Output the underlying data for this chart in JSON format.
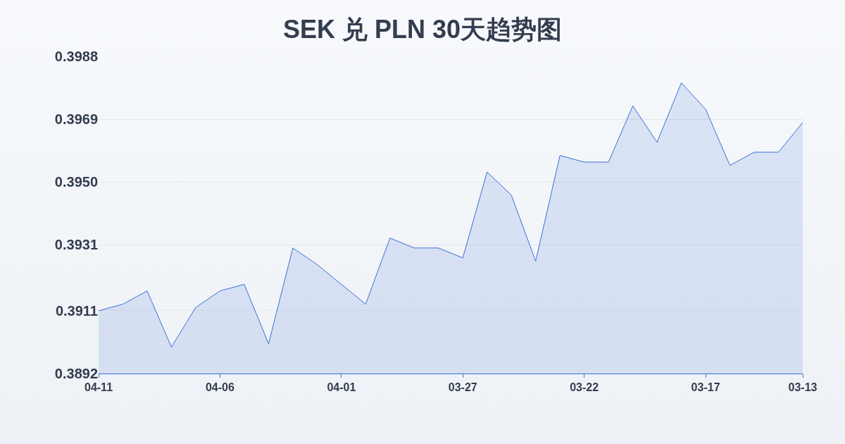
{
  "chart_data": {
    "type": "area",
    "title": "SEK 兑 PLN 30天趋势图",
    "categories": [
      "04-11",
      null,
      null,
      null,
      null,
      "04-06",
      null,
      null,
      null,
      null,
      "04-01",
      null,
      null,
      null,
      null,
      "03-27",
      null,
      null,
      null,
      null,
      "03-22",
      null,
      null,
      null,
      null,
      "03-17",
      null,
      null,
      null,
      "03-13"
    ],
    "series": [
      {
        "color": "#3a6fd8",
        "values": [
          0.3911,
          0.3913,
          0.3917,
          0.39,
          0.3912,
          0.3917,
          0.3919,
          0.3901,
          0.393,
          0.3925,
          0.3919,
          0.3913,
          0.3933,
          0.393,
          0.393,
          0.3927,
          0.3953,
          0.3946,
          0.3926,
          0.3958,
          0.3956,
          0.3956,
          0.3973,
          0.3962,
          0.398,
          0.3972,
          0.3955,
          0.3959,
          0.3959,
          0.3968
        ]
      }
    ],
    "ylim": [
      0.3892,
      0.3988
    ],
    "yticks": [
      {
        "value": 0.3892,
        "label": "0.3892"
      },
      {
        "value": 0.3911,
        "label": "0.3911"
      },
      {
        "value": 0.3931,
        "label": "0.3931"
      },
      {
        "value": 0.395,
        "label": "0.3950"
      },
      {
        "value": 0.3969,
        "label": "0.3969"
      },
      {
        "value": 0.3988,
        "label": "0.3988"
      }
    ],
    "grid": "y",
    "marker": "none",
    "line_style": "solid"
  }
}
